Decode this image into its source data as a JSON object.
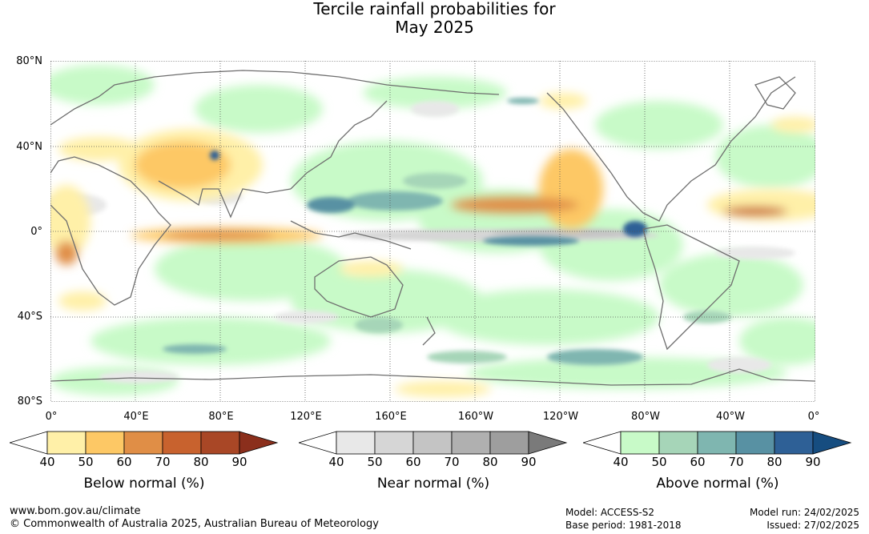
{
  "title": {
    "line1": "Tercile rainfall probabilities for",
    "line2": "May 2025"
  },
  "axes": {
    "lat_labels": [
      "80°N",
      "40°N",
      "0°",
      "40°S",
      "80°S"
    ],
    "lon_labels": [
      "0°",
      "40°E",
      "80°E",
      "120°E",
      "160°E",
      "160°W",
      "120°W",
      "80°W",
      "40°W",
      "0°"
    ],
    "lat_range": [
      -80,
      80
    ],
    "lon_range": [
      0,
      360
    ]
  },
  "legends": [
    {
      "title": "Below normal (%)",
      "ticks": [
        "40",
        "50",
        "60",
        "70",
        "80",
        "90"
      ],
      "colors": [
        "#ffffff",
        "#fff0a8",
        "#fdc865",
        "#e08e46",
        "#c8622e",
        "#a94726",
        "#8b2f1c"
      ]
    },
    {
      "title": "Near normal (%)",
      "ticks": [
        "40",
        "50",
        "60",
        "70",
        "80",
        "90"
      ],
      "colors": [
        "#ffffff",
        "#e8e8e8",
        "#d6d6d6",
        "#c4c4c4",
        "#b0b0b0",
        "#9e9e9e",
        "#7a7a7a"
      ]
    },
    {
      "title": "Above normal (%)",
      "ticks": [
        "40",
        "50",
        "60",
        "70",
        "80",
        "90"
      ],
      "colors": [
        "#ffffff",
        "#c8fac8",
        "#a6d5b8",
        "#7fb6b0",
        "#5891a3",
        "#2e6096",
        "#164d80"
      ]
    }
  ],
  "footer": {
    "url": "www.bom.gov.au/climate",
    "copyright": "© Commonwealth of Australia 2025, Australian Bureau of Meteorology",
    "model": "Model: ACCESS-S2",
    "base_period": "Base period: 1981-2018",
    "model_run": "Model run: 24/02/2025",
    "issued": "Issued: 27/02/2025"
  }
}
